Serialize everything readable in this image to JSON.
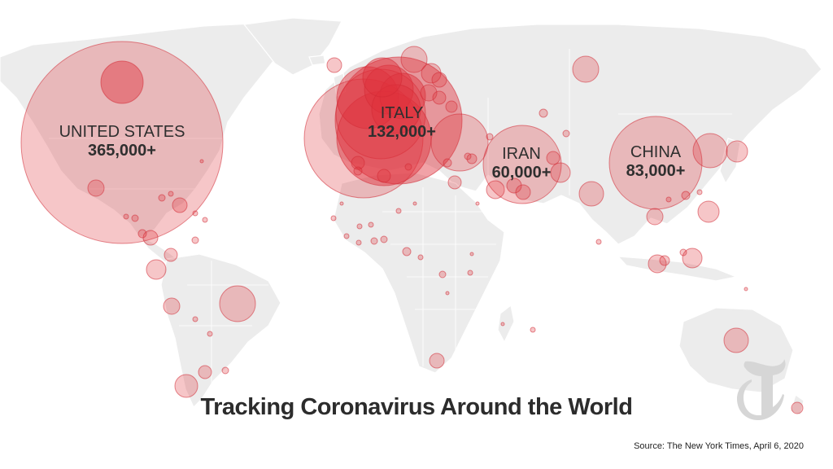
{
  "headline": "Tracking Coronavirus Around the World",
  "source": "Source: The New York Times, April 6, 2020",
  "colors": {
    "bubble": "#e0313b",
    "land": "#ececec",
    "text": "#2f2f2f"
  },
  "icons": {
    "logo": "nyt-t-logo-icon"
  },
  "labeled_countries": [
    {
      "name": "UNITED STATES",
      "cases": "365,000+"
    },
    {
      "name": "ITALY",
      "cases": "132,000+"
    },
    {
      "name": "IRAN",
      "cases": "60,000+"
    },
    {
      "name": "CHINA",
      "cases": "83,000+"
    }
  ]
}
